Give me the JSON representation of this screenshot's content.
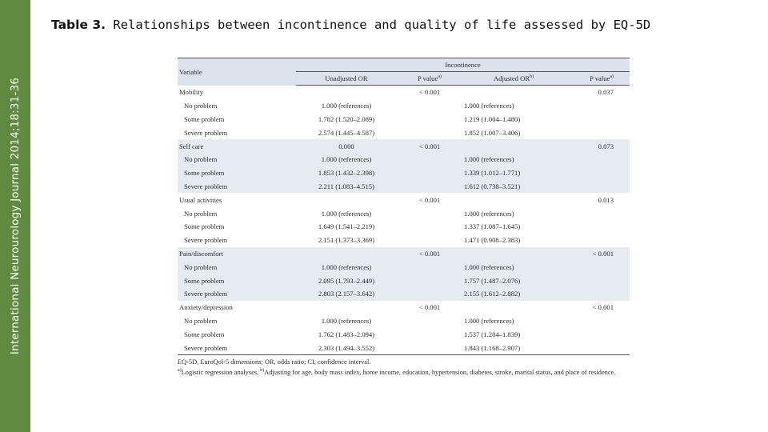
{
  "sidebar": {
    "journal": "International Neurourology Journal 2014;18:31-36"
  },
  "title": {
    "bold": "Table 3.",
    "text": " Relationships between incontinence and quality of life assessed by EQ-5D"
  },
  "table": {
    "variable_header": "Variable",
    "group_header": "Incontinence",
    "col_headers": [
      "Unadjusted OR",
      "P value",
      "Adjusted OR",
      "P value"
    ],
    "col_header_sups": [
      "",
      "a)",
      "b)",
      "a)"
    ],
    "rows": [
      {
        "label": "Mobility",
        "indent": false,
        "shade": false,
        "cells": [
          "",
          "< 0.001",
          "",
          "0.037"
        ]
      },
      {
        "label": "No problem",
        "indent": true,
        "shade": false,
        "cells": [
          "1.000 (references)",
          "",
          "1.000 (references)",
          ""
        ]
      },
      {
        "label": "Some problem",
        "indent": true,
        "shade": false,
        "cells": [
          "1.782 (1.520–2.089)",
          "",
          "1.219 (1.004–1.480)",
          ""
        ]
      },
      {
        "label": "Severe problem",
        "indent": true,
        "shade": false,
        "cells": [
          "2.574 (1.445–4.587)",
          "",
          "1.852 (1.007–3.406)",
          ""
        ]
      },
      {
        "label": "Self care",
        "indent": false,
        "shade": true,
        "cells": [
          "0.000",
          "< 0.001",
          "",
          "0.073"
        ]
      },
      {
        "label": "No problem",
        "indent": true,
        "shade": true,
        "cells": [
          "1.000 (references)",
          "",
          "1.000 (references)",
          ""
        ]
      },
      {
        "label": "Some problem",
        "indent": true,
        "shade": true,
        "cells": [
          "1.853 (1.432–2.398)",
          "",
          "1.339 (1.012–1.771)",
          ""
        ]
      },
      {
        "label": "Severe problem",
        "indent": true,
        "shade": true,
        "cells": [
          "2.211 (1.083–4.515)",
          "",
          "1.612 (0.738–3.521)",
          ""
        ]
      },
      {
        "label": "Usual activities",
        "indent": false,
        "shade": false,
        "cells": [
          "",
          "< 0.001",
          "",
          "0.013"
        ]
      },
      {
        "label": "No problem",
        "indent": true,
        "shade": false,
        "cells": [
          "1.000 (references)",
          "",
          "1.000 (references)",
          ""
        ]
      },
      {
        "label": "Some problem",
        "indent": true,
        "shade": false,
        "cells": [
          "1.649 (1.541–2.219)",
          "",
          "1.337 (1.087–1.645)",
          ""
        ]
      },
      {
        "label": "Severe problem",
        "indent": true,
        "shade": false,
        "cells": [
          "2.151 (1.373–3.369)",
          "",
          "1.471 (0.908–2.383)",
          ""
        ]
      },
      {
        "label": "Pain/discomfort",
        "indent": false,
        "shade": true,
        "cells": [
          "",
          "< 0.001",
          "",
          "< 0.001"
        ]
      },
      {
        "label": "No problem",
        "indent": true,
        "shade": true,
        "cells": [
          "1.000 (references)",
          "",
          "1.000 (references)",
          ""
        ]
      },
      {
        "label": "Some problem",
        "indent": true,
        "shade": true,
        "cells": [
          "2.095 (1.793–2.449)",
          "",
          "1.757 (1.487–2.076)",
          ""
        ]
      },
      {
        "label": "Severe problem",
        "indent": true,
        "shade": true,
        "cells": [
          "2.803 (2.157–3.642)",
          "",
          "2.155 (1.612–2.882)",
          ""
        ]
      },
      {
        "label": "Anxiety/depression",
        "indent": false,
        "shade": false,
        "cells": [
          "",
          "< 0.001",
          "",
          "< 0.001"
        ]
      },
      {
        "label": "No problem",
        "indent": true,
        "shade": false,
        "cells": [
          "1.000 (references)",
          "",
          "1.000 (references)",
          ""
        ]
      },
      {
        "label": "Some problem",
        "indent": true,
        "shade": false,
        "cells": [
          "1.762 (1.483–2.094)",
          "",
          "1.537 (1.284–1.839)",
          ""
        ]
      },
      {
        "label": "Severe problem",
        "indent": true,
        "shade": false,
        "cells": [
          "2.303 (1.494–3.552)",
          "",
          "1.843 (1.168–2.907)",
          ""
        ]
      }
    ],
    "footnotes": {
      "line1": "EQ-5D, EuroQol-5 dimensions; OR, odds ratio; CI, confidence interval.",
      "sup_a": "a)",
      "note_a": "Logistic regression analyses. ",
      "sup_b": "b)",
      "note_b": "Adjusting for age, body mass index, home income, education, hypertension, diabetes, stroke, marital status, and place of residence."
    }
  },
  "colors": {
    "sidebar": "#5f8a3f",
    "header_fill": "#dde3ec",
    "band_fill": "#e6ebf1"
  }
}
